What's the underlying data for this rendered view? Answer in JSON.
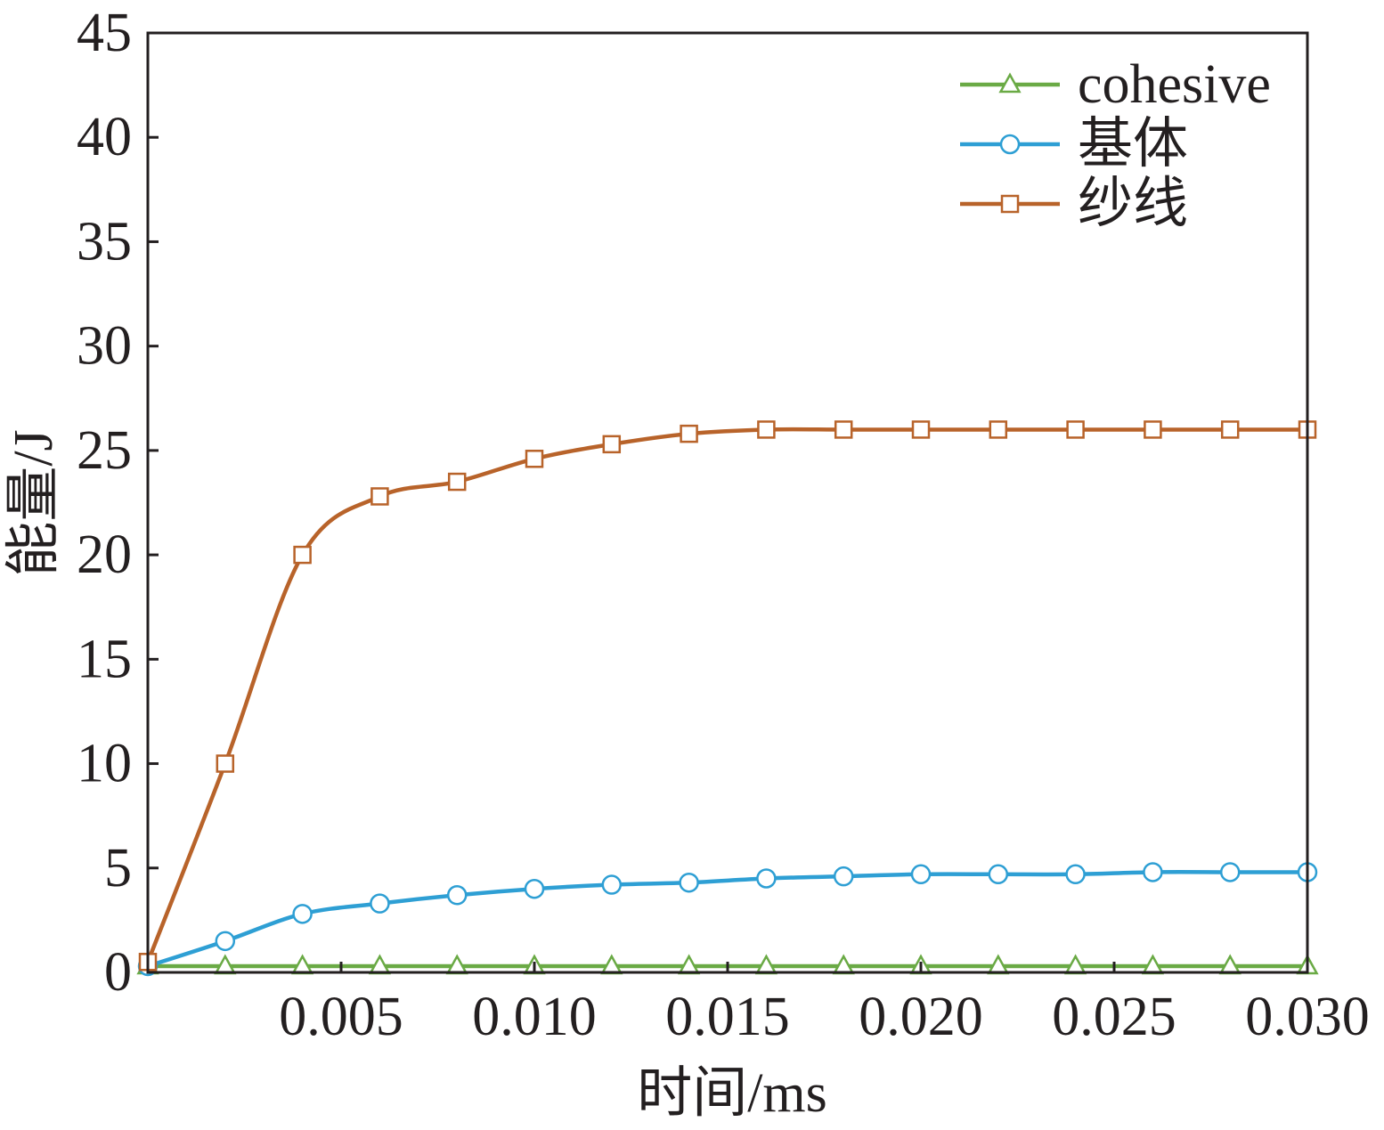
{
  "chart_data": {
    "type": "line",
    "xlabel": "时间/ms",
    "ylabel": "能量/J",
    "xlim": [
      0,
      0.03
    ],
    "ylim": [
      0,
      45
    ],
    "x_ticks": [
      0.005,
      0.01,
      0.015,
      0.02,
      0.025,
      0.03
    ],
    "x_tick_labels": [
      "0.005",
      "0.010",
      "0.015",
      "0.020",
      "0.025",
      "0.030"
    ],
    "y_ticks": [
      0,
      5,
      10,
      15,
      20,
      25,
      30,
      35,
      40,
      45
    ],
    "y_tick_labels": [
      "0",
      "5",
      "10",
      "15",
      "20",
      "25",
      "30",
      "35",
      "40",
      "45"
    ],
    "grid": false,
    "legend_position": "top-right",
    "series": [
      {
        "name": "cohesive",
        "color": "#6aaa45",
        "marker": "triangle",
        "x": [
          0,
          0.002,
          0.004,
          0.006,
          0.008,
          0.01,
          0.012,
          0.014,
          0.016,
          0.018,
          0.02,
          0.022,
          0.024,
          0.026,
          0.028,
          0.03
        ],
        "y": [
          0.3,
          0.3,
          0.3,
          0.3,
          0.3,
          0.3,
          0.3,
          0.3,
          0.3,
          0.3,
          0.3,
          0.3,
          0.3,
          0.3,
          0.3,
          0.3
        ]
      },
      {
        "name": "基体",
        "color": "#2e9fd4",
        "marker": "circle",
        "x": [
          0,
          0.002,
          0.004,
          0.006,
          0.008,
          0.01,
          0.012,
          0.014,
          0.016,
          0.018,
          0.02,
          0.022,
          0.024,
          0.026,
          0.028,
          0.03
        ],
        "y": [
          0.3,
          1.5,
          2.8,
          3.3,
          3.7,
          4.0,
          4.2,
          4.3,
          4.5,
          4.6,
          4.7,
          4.7,
          4.7,
          4.8,
          4.8,
          4.8
        ]
      },
      {
        "name": "纱线",
        "color": "#b8632a",
        "marker": "square",
        "x": [
          0,
          0.002,
          0.004,
          0.006,
          0.008,
          0.01,
          0.012,
          0.014,
          0.016,
          0.018,
          0.02,
          0.022,
          0.024,
          0.026,
          0.028,
          0.03
        ],
        "y": [
          0.5,
          10.0,
          20.0,
          22.8,
          23.5,
          24.6,
          25.3,
          25.8,
          26.0,
          26.0,
          26.0,
          26.0,
          26.0,
          26.0,
          26.0,
          26.0
        ]
      }
    ]
  }
}
